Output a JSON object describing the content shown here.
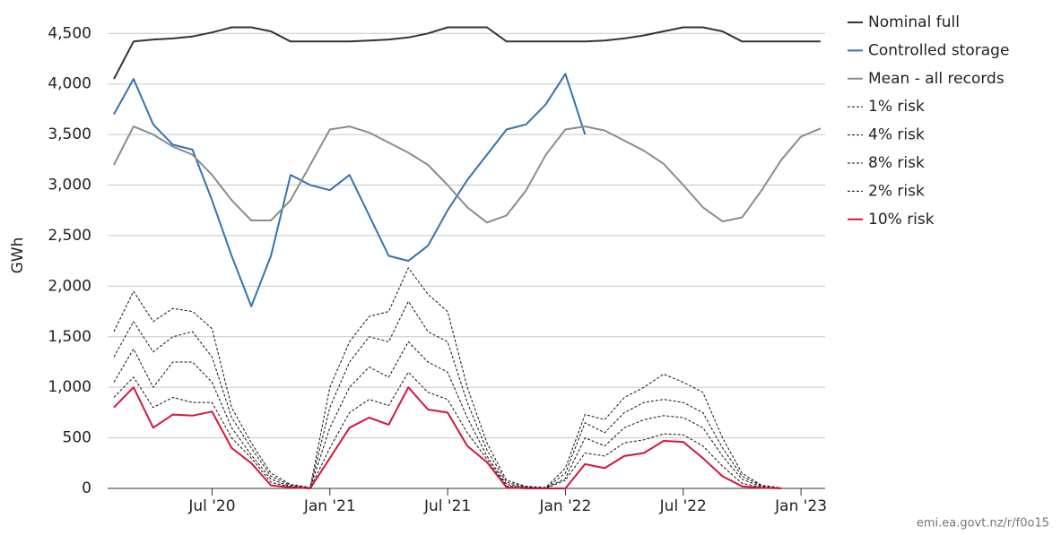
{
  "chart_data": {
    "type": "line",
    "y_label": "GWh",
    "source": "emi.ea.govt.nz/r/f0o15",
    "x": [
      "2020-02",
      "2020-03",
      "2020-04",
      "2020-05",
      "2020-06",
      "2020-07",
      "2020-08",
      "2020-09",
      "2020-10",
      "2020-11",
      "2020-12",
      "2021-01",
      "2021-02",
      "2021-03",
      "2021-04",
      "2021-05",
      "2021-06",
      "2021-07",
      "2021-08",
      "2021-09",
      "2021-10",
      "2021-11",
      "2021-12",
      "2022-01",
      "2022-02",
      "2022-03",
      "2022-04",
      "2022-05",
      "2022-06",
      "2022-07",
      "2022-08",
      "2022-09",
      "2022-10",
      "2022-11",
      "2022-12",
      "2023-01",
      "2023-02"
    ],
    "xlim": [
      "2020-02",
      "2023-02"
    ],
    "xticks": [
      {
        "value": "2020-07",
        "label": "Jul '20"
      },
      {
        "value": "2021-01",
        "label": "Jan '21"
      },
      {
        "value": "2021-07",
        "label": "Jul '21"
      },
      {
        "value": "2022-01",
        "label": "Jan '22"
      },
      {
        "value": "2022-07",
        "label": "Jul '22"
      },
      {
        "value": "2023-01",
        "label": "Jan '23"
      }
    ],
    "ylim": [
      0,
      4600
    ],
    "yticks": [
      0,
      500,
      {
        "value": 1000,
        "label": "1,000"
      },
      {
        "value": 1500,
        "label": "1,500"
      },
      {
        "value": 2000,
        "label": "2,000"
      },
      {
        "value": 2500,
        "label": "2,500"
      },
      {
        "value": 3000,
        "label": "3,000"
      },
      {
        "value": 3500,
        "label": "3,500"
      },
      {
        "value": 4000,
        "label": "4,000"
      },
      {
        "value": 4500,
        "label": "4,500"
      }
    ],
    "grid": true,
    "legend": "right",
    "series": [
      {
        "name": "Nominal full",
        "color": "#333333",
        "dashed": false,
        "values": [
          4050,
          4420,
          4440,
          4450,
          4470,
          4510,
          4560,
          4560,
          4520,
          4420,
          4420,
          4420,
          4420,
          4430,
          4440,
          4460,
          4500,
          4560,
          4560,
          4560,
          4420,
          4420,
          4420,
          4420,
          4420,
          4430,
          4450,
          4480,
          4520,
          4560,
          4560,
          4520,
          4420,
          4420,
          4420,
          4420,
          4420
        ]
      },
      {
        "name": "Controlled storage",
        "color": "#3572b0",
        "dashed": false,
        "values": [
          3700,
          4050,
          3600,
          3400,
          3350,
          2850,
          2300,
          1800,
          2300,
          3100,
          3000,
          2950,
          3100,
          2700,
          2300,
          2250,
          2400,
          2750,
          3050,
          3300,
          3550,
          3600,
          3800,
          4100,
          3500,
          null,
          null,
          null,
          null,
          null,
          null,
          null,
          null,
          null,
          null,
          null,
          null
        ]
      },
      {
        "name": "Mean - all records",
        "color": "#8c8c8c",
        "dashed": false,
        "values": [
          3200,
          3580,
          3500,
          3380,
          3300,
          3100,
          2850,
          2650,
          2650,
          2850,
          3200,
          3550,
          3580,
          3520,
          3420,
          3320,
          3200,
          3000,
          2780,
          2630,
          2700,
          2950,
          3300,
          3550,
          3580,
          3540,
          3440,
          3340,
          3210,
          3000,
          2780,
          2640,
          2680,
          2950,
          3250,
          3480,
          3560
        ]
      },
      {
        "name": "1% risk",
        "color": "#111111",
        "dashed": true,
        "values": [
          1550,
          1950,
          1650,
          1780,
          1750,
          1580,
          800,
          450,
          150,
          40,
          10,
          1000,
          1450,
          1700,
          1750,
          2180,
          1920,
          1750,
          1000,
          450,
          80,
          20,
          10,
          200,
          730,
          680,
          900,
          1000,
          1130,
          1050,
          950,
          500,
          150,
          30,
          5,
          null,
          null
        ]
      },
      {
        "name": "4% risk",
        "color": "#111111",
        "dashed": true,
        "values": [
          1050,
          1380,
          1000,
          1250,
          1250,
          1050,
          600,
          330,
          90,
          20,
          3,
          600,
          1000,
          1200,
          1100,
          1450,
          1250,
          1150,
          700,
          320,
          40,
          10,
          3,
          100,
          500,
          420,
          600,
          680,
          720,
          700,
          600,
          320,
          90,
          15,
          2,
          null,
          null
        ]
      },
      {
        "name": "8% risk",
        "color": "#111111",
        "dashed": true,
        "values": [
          900,
          1100,
          800,
          900,
          850,
          850,
          500,
          300,
          60,
          15,
          2,
          400,
          750,
          880,
          820,
          1150,
          950,
          880,
          550,
          290,
          25,
          5,
          2,
          80,
          350,
          320,
          450,
          480,
          540,
          530,
          420,
          220,
          50,
          10,
          1,
          null,
          null
        ]
      },
      {
        "name": "2% risk",
        "color": "#111111",
        "dashed": true,
        "values": [
          1300,
          1650,
          1350,
          1500,
          1550,
          1300,
          700,
          400,
          120,
          30,
          5,
          800,
          1250,
          1500,
          1450,
          1850,
          1550,
          1450,
          850,
          380,
          60,
          15,
          5,
          150,
          650,
          550,
          750,
          850,
          880,
          850,
          750,
          400,
          120,
          25,
          3,
          null,
          null
        ]
      },
      {
        "name": "10% risk",
        "color": "#d4163c",
        "dashed": false,
        "values": [
          800,
          1000,
          600,
          730,
          720,
          760,
          400,
          250,
          30,
          10,
          0,
          300,
          600,
          700,
          630,
          1000,
          780,
          750,
          420,
          260,
          10,
          0,
          0,
          0,
          240,
          200,
          320,
          350,
          470,
          460,
          300,
          120,
          20,
          5,
          0,
          null,
          null
        ]
      }
    ]
  }
}
